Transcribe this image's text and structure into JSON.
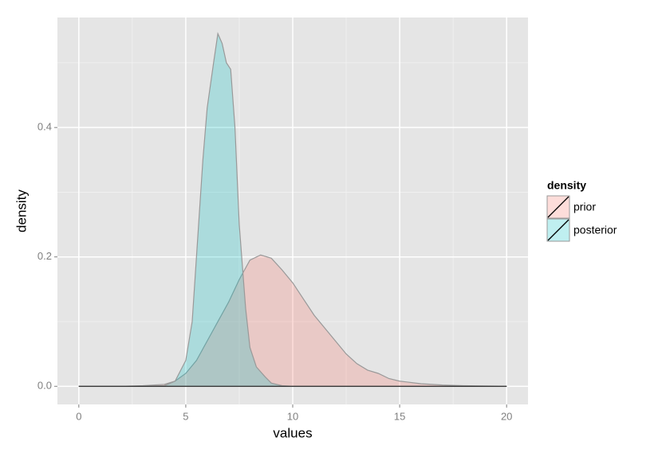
{
  "chart_data": {
    "type": "area",
    "xlabel": "values",
    "ylabel": "density",
    "legend_title": "density",
    "xlim": [
      -1,
      21
    ],
    "ylim": [
      -0.028,
      0.57
    ],
    "xticks": [
      0,
      5,
      10,
      15,
      20
    ],
    "yticks": [
      {
        "value": 0,
        "label": "0.0"
      },
      0.2,
      0.4
    ],
    "xminorticks": [
      2.5,
      7.5,
      12.5,
      17.5
    ],
    "yminorticks": [
      0.1,
      0.3,
      0.5
    ],
    "grid": true,
    "legend": "right",
    "series": [
      {
        "name": "prior",
        "color": "#F8766D",
        "x": [
          0,
          2,
          3,
          4,
          4.5,
          5,
          5.5,
          6,
          6.5,
          7,
          7.5,
          8,
          8.5,
          9,
          9.5,
          10,
          10.5,
          11,
          11.5,
          12,
          12.5,
          13,
          13.5,
          14,
          14.5,
          15,
          16,
          17,
          18,
          20
        ],
        "values": [
          0,
          0,
          0.001,
          0.003,
          0.008,
          0.02,
          0.04,
          0.07,
          0.1,
          0.13,
          0.165,
          0.195,
          0.203,
          0.198,
          0.18,
          0.16,
          0.135,
          0.11,
          0.09,
          0.07,
          0.05,
          0.035,
          0.025,
          0.02,
          0.012,
          0.008,
          0.004,
          0.002,
          0.001,
          0
        ]
      },
      {
        "name": "posterior",
        "color": "#00BFC4",
        "x": [
          0,
          3,
          4,
          4.5,
          5,
          5.3,
          5.5,
          5.8,
          6,
          6.3,
          6.5,
          6.7,
          6.9,
          7.1,
          7.3,
          7.5,
          7.8,
          8,
          8.3,
          8.7,
          9,
          9.5,
          10,
          15,
          20
        ],
        "values": [
          0,
          0,
          0.001,
          0.008,
          0.04,
          0.1,
          0.2,
          0.35,
          0.43,
          0.5,
          0.545,
          0.53,
          0.5,
          0.49,
          0.4,
          0.25,
          0.12,
          0.06,
          0.03,
          0.015,
          0.005,
          0.001,
          0,
          0,
          0
        ]
      }
    ]
  }
}
